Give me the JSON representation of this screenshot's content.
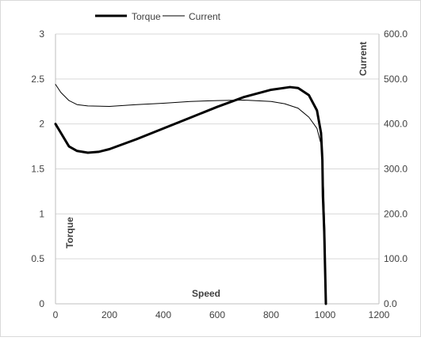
{
  "chart_data": {
    "type": "line",
    "xlabel": "Speed",
    "ylabel_left": "Torque",
    "ylabel_right": "Current",
    "xlim": [
      0,
      1200
    ],
    "ylim_left": [
      0,
      3
    ],
    "ylim_right": [
      0,
      600
    ],
    "x_ticks": [
      "0",
      "200",
      "400",
      "600",
      "800",
      "1000",
      "1200"
    ],
    "y_left_ticks": [
      "0",
      "0.5",
      "1",
      "1.5",
      "2",
      "2.5",
      "3"
    ],
    "y_right_ticks": [
      "0.0",
      "100.0",
      "200.0",
      "300.0",
      "400.0",
      "500.0",
      "600.0"
    ],
    "grid": true,
    "legend_position": "top",
    "series": [
      {
        "name": "Torque",
        "axis": "left",
        "color": "#000000",
        "points": [
          [
            0,
            2.0
          ],
          [
            20,
            1.9
          ],
          [
            50,
            1.75
          ],
          [
            80,
            1.7
          ],
          [
            120,
            1.68
          ],
          [
            160,
            1.69
          ],
          [
            200,
            1.72
          ],
          [
            300,
            1.83
          ],
          [
            400,
            1.95
          ],
          [
            500,
            2.07
          ],
          [
            600,
            2.19
          ],
          [
            700,
            2.3
          ],
          [
            800,
            2.38
          ],
          [
            870,
            2.41
          ],
          [
            900,
            2.4
          ],
          [
            940,
            2.32
          ],
          [
            970,
            2.15
          ],
          [
            985,
            1.9
          ],
          [
            990,
            1.6
          ],
          [
            992,
            1.2
          ],
          [
            997,
            0.8
          ],
          [
            1000,
            0.4
          ],
          [
            1003,
            0.0
          ]
        ]
      },
      {
        "name": "Current",
        "axis": "right",
        "color": "#000000",
        "points": [
          [
            0,
            488
          ],
          [
            20,
            470
          ],
          [
            50,
            452
          ],
          [
            80,
            443
          ],
          [
            120,
            440
          ],
          [
            200,
            439
          ],
          [
            300,
            443
          ],
          [
            400,
            446
          ],
          [
            500,
            450
          ],
          [
            600,
            452
          ],
          [
            700,
            453
          ],
          [
            800,
            450
          ],
          [
            850,
            445
          ],
          [
            900,
            435
          ],
          [
            940,
            415
          ],
          [
            970,
            390
          ],
          [
            985,
            355
          ],
          [
            990,
            320
          ],
          [
            995,
            250
          ],
          [
            1000,
            150
          ],
          [
            1003,
            0
          ]
        ]
      }
    ]
  }
}
